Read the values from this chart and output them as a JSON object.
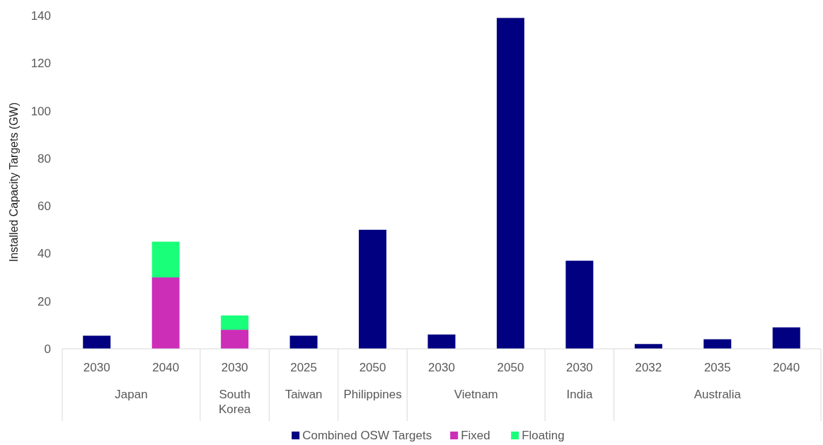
{
  "chart_data": {
    "type": "bar",
    "stacked": true,
    "ylabel": "Installed Capacity Targets (GW)",
    "categories": [
      "2030",
      "2040",
      "2030",
      "2025",
      "2050",
      "2030",
      "2050",
      "2030",
      "2032",
      "2035",
      "2040"
    ],
    "series": [
      {
        "name": "Combined OSW Targets",
        "color": "#000080",
        "values": [
          5.5,
          null,
          null,
          5.5,
          50,
          6,
          139,
          37,
          2,
          4,
          9
        ]
      },
      {
        "name": "Fixed",
        "color": "#cc2eb8",
        "values": [
          null,
          30,
          8,
          null,
          null,
          null,
          null,
          null,
          null,
          null,
          null
        ]
      },
      {
        "name": "Floating",
        "color": "#1aff7a",
        "values": [
          null,
          15,
          6,
          null,
          null,
          null,
          null,
          null,
          null,
          null,
          null
        ]
      }
    ],
    "ylim": [
      0,
      140
    ],
    "yticks": [
      0,
      20,
      40,
      60,
      80,
      100,
      120,
      140
    ],
    "legend": "bottom",
    "annotations": [
      "Japan",
      "South Korea",
      "Taiwan",
      "Philippines",
      "Vietnam",
      "India",
      "Australia"
    ]
  }
}
